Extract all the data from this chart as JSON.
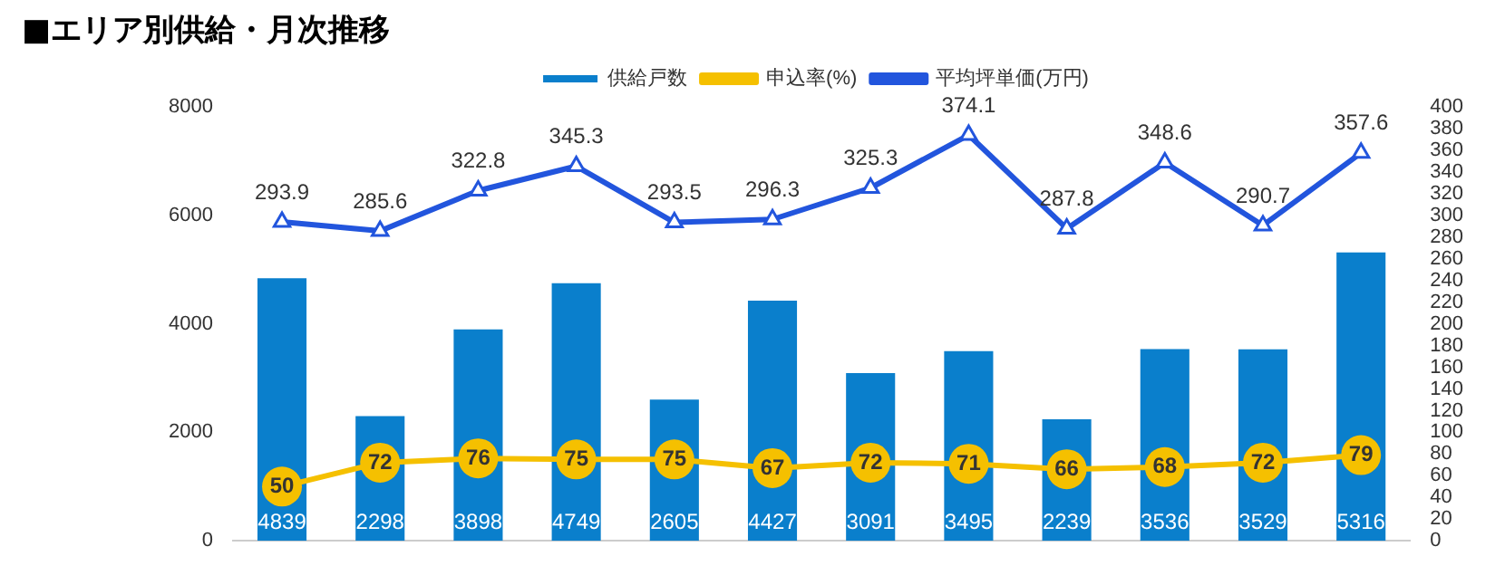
{
  "chart_data": {
    "type": "bar",
    "title": "■エリア別供給・月次推移",
    "categories": [
      null,
      null,
      null,
      null,
      null,
      null,
      null,
      null,
      null,
      null,
      null,
      null
    ],
    "series": [
      {
        "name": "供給戸数",
        "color": "#0a7fcc",
        "values": [
          4839,
          2298,
          3898,
          4749,
          2605,
          4427,
          3091,
          3495,
          2239,
          3536,
          3529,
          5316
        ]
      },
      {
        "name": "申込率(%)",
        "type": "line",
        "axis": "y2",
        "color": "#f5c000",
        "marker": "circle",
        "values": [
          50,
          72,
          76,
          75,
          75,
          67,
          72,
          71,
          66,
          68,
          72,
          79
        ]
      },
      {
        "name": "平均坪単価(万円)",
        "type": "line",
        "axis": "y2",
        "color": "#2255dd",
        "marker": "triangle",
        "values": [
          293.9,
          285.6,
          322.8,
          345.3,
          293.5,
          296.3,
          325.3,
          374.1,
          287.8,
          348.6,
          290.7,
          357.6
        ]
      }
    ],
    "ylim": [
      0,
      8000
    ],
    "yticks": [
      0,
      2000,
      4000,
      6000,
      8000
    ],
    "y2lim": [
      0,
      400
    ],
    "y2ticks": [
      0,
      20,
      40,
      60,
      80,
      100,
      120,
      140,
      160,
      180,
      200,
      220,
      240,
      260,
      280,
      300,
      320,
      340,
      360,
      380,
      400
    ],
    "legend": "top",
    "grid": false,
    "data_labels": true
  }
}
